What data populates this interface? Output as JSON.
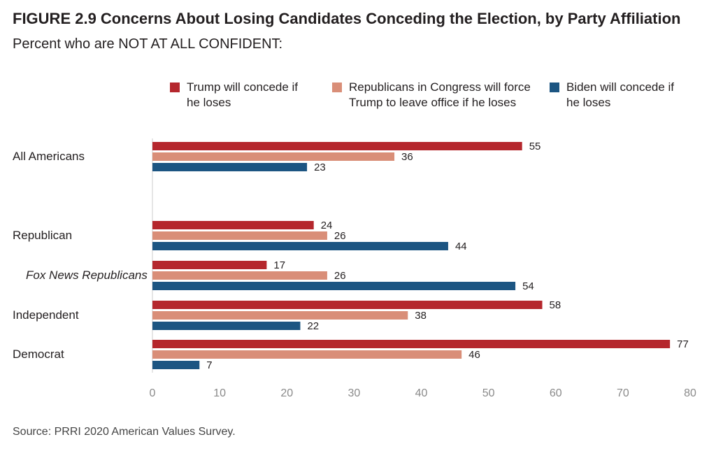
{
  "header": {
    "title": "FIGURE 2.9  Concerns About Losing Candidates Conceding the Election, by Party Affiliation",
    "subtitle": "Percent who are NOT AT ALL CONFIDENT:"
  },
  "source": "Source: PRRI 2020 American Values Survey.",
  "chart_data": {
    "type": "bar",
    "orientation": "horizontal",
    "categories": [
      "All Americans",
      "Republican",
      "Fox News Republicans",
      "Independent",
      "Democrat"
    ],
    "italic_categories": [
      "Fox News Republicans"
    ],
    "series": [
      {
        "name": "Trump will concede if he loses",
        "color": "#b5272d",
        "values": [
          55,
          24,
          17,
          58,
          77
        ]
      },
      {
        "name": "Republicans in Congress will force Trump to leave office if he loses",
        "color": "#d98e78",
        "values": [
          36,
          26,
          26,
          38,
          46
        ]
      },
      {
        "name": "Biden will concede if he loses",
        "color": "#1c5582",
        "values": [
          23,
          44,
          54,
          22,
          7
        ]
      }
    ],
    "xlim": [
      0,
      80
    ],
    "xticks": [
      0,
      10,
      20,
      30,
      40,
      50,
      60,
      70,
      80
    ],
    "grid": false,
    "legend_position": "top"
  }
}
